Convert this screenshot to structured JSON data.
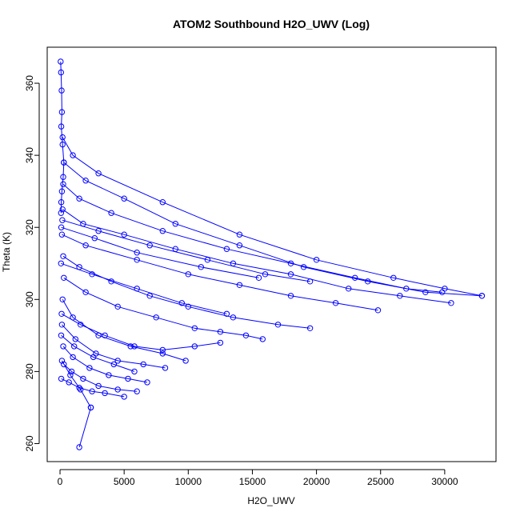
{
  "chart_data": {
    "type": "scatter",
    "title": "ATOM2 Southbound H2O_UWV (Log)",
    "xlabel": "H2O_UWV",
    "ylabel": "Theta (K)",
    "xlim": [
      -1000,
      34000
    ],
    "ylim": [
      255,
      370
    ],
    "x_ticks": [
      0,
      5000,
      10000,
      15000,
      20000,
      25000,
      30000
    ],
    "y_ticks": [
      260,
      280,
      300,
      320,
      340,
      360
    ],
    "grid": false,
    "legend": "none",
    "marker": "open-circle",
    "connect_points": true,
    "color": "#0000ff",
    "segments": [
      {
        "x": [
          50,
          80,
          120,
          150,
          100,
          200,
          300,
          250,
          150,
          100,
          80
        ],
        "y": [
          366,
          363,
          358,
          352,
          348,
          343,
          338,
          334,
          330,
          327,
          324
        ]
      },
      {
        "x": [
          200,
          1000,
          3000,
          8000,
          14000,
          20000,
          26000,
          30000,
          32900
        ],
        "y": [
          345,
          340,
          335,
          327,
          318,
          311,
          306,
          303,
          301
        ]
      },
      {
        "x": [
          300,
          2000,
          5000,
          9000,
          14000,
          19000,
          24000,
          28500,
          32900
        ],
        "y": [
          338,
          333,
          328,
          321,
          315,
          309,
          305,
          302,
          301
        ]
      },
      {
        "x": [
          250,
          1500,
          4000,
          8000,
          13000,
          18000,
          23000,
          27000,
          29800
        ],
        "y": [
          332,
          328,
          324,
          319,
          314,
          310,
          306,
          303,
          302
        ]
      },
      {
        "x": [
          200,
          1800,
          5000,
          9000,
          13500,
          18000,
          22500,
          26500,
          30500
        ],
        "y": [
          325,
          321,
          318,
          314,
          310,
          307,
          303,
          301,
          299
        ]
      },
      {
        "x": [
          150,
          2000,
          6000,
          10000,
          14000,
          18000,
          21500,
          24800
        ],
        "y": [
          318,
          315,
          311,
          307,
          304,
          301,
          299,
          297
        ]
      },
      {
        "x": [
          250,
          1500,
          4000,
          7000,
          10000,
          13500,
          17000,
          19500
        ],
        "y": [
          312,
          309,
          305,
          301,
          298,
          295,
          293,
          292
        ]
      },
      {
        "x": [
          300,
          2000,
          4500,
          7500,
          10500,
          12500,
          14500,
          15800
        ],
        "y": [
          306,
          302,
          298,
          295,
          292,
          291,
          290,
          289
        ]
      },
      {
        "x": [
          200,
          1000,
          3000,
          5500,
          8000,
          9800
        ],
        "y": [
          300,
          295,
          290,
          287,
          285,
          283
        ]
      },
      {
        "x": [
          150,
          1200,
          2800,
          4500,
          6500,
          8200
        ],
        "y": [
          293,
          289,
          285,
          283,
          282,
          281
        ]
      },
      {
        "x": [
          250,
          1000,
          2300,
          3800,
          5300,
          6800
        ],
        "y": [
          287,
          284,
          281,
          279,
          278,
          277
        ]
      },
      {
        "x": [
          300,
          900,
          1800,
          3000,
          4500,
          6000
        ],
        "y": [
          282,
          280,
          278,
          276,
          275,
          274.5
        ]
      },
      {
        "x": [
          100,
          700,
          1500,
          2500,
          3500,
          5000
        ],
        "y": [
          278,
          277,
          275.5,
          274.5,
          274,
          273
        ]
      },
      {
        "x": [
          150,
          800,
          1600,
          2400
        ],
        "y": [
          283,
          279,
          275,
          270
        ]
      },
      {
        "x": [
          2400,
          1500
        ],
        "y": [
          270,
          259
        ]
      },
      {
        "x": [
          100,
          2700,
          6000,
          11000,
          15500
        ],
        "y": [
          320,
          317,
          313,
          309,
          306
        ]
      },
      {
        "x": [
          180,
          3000,
          7000,
          11500,
          16000,
          19500
        ],
        "y": [
          322,
          319,
          315,
          311,
          307,
          305
        ]
      },
      {
        "x": [
          80,
          2500,
          6000,
          9500,
          13000
        ],
        "y": [
          310,
          307,
          303,
          299,
          296
        ]
      },
      {
        "x": [
          120,
          1600,
          3500,
          5800,
          8000,
          10500,
          12500
        ],
        "y": [
          296,
          293,
          290,
          287,
          286,
          287,
          288
        ]
      },
      {
        "x": [
          90,
          1100,
          2600,
          4200,
          5800
        ],
        "y": [
          290,
          287,
          284,
          282,
          280
        ]
      }
    ]
  }
}
